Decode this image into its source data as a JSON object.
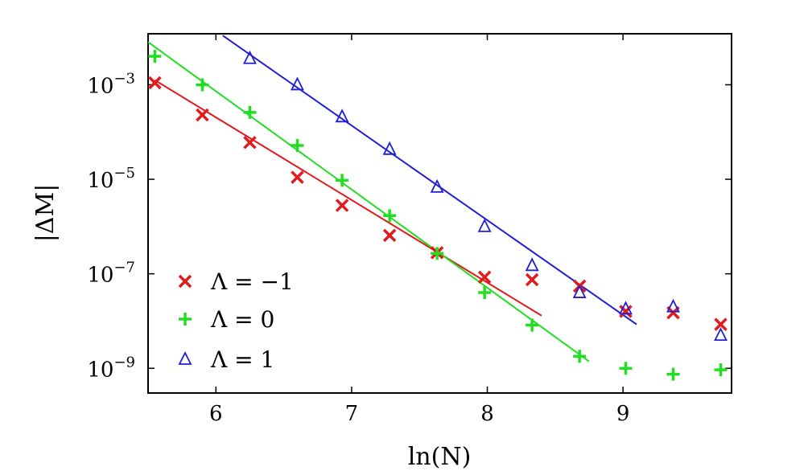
{
  "chart_data": {
    "type": "scatter",
    "xlabel": "ln(N)",
    "ylabel": "|ΔM|",
    "xlim": [
      5.5,
      9.8
    ],
    "ylim": [
      3e-10,
      0.012
    ],
    "yscale": "log",
    "xticks": [
      {
        "value": 6,
        "label": "6"
      },
      {
        "value": 7,
        "label": "7"
      },
      {
        "value": 8,
        "label": "8"
      },
      {
        "value": 9,
        "label": "9"
      }
    ],
    "yticks": [
      {
        "value": 0.001,
        "mantissa": "10",
        "exp": "−3"
      },
      {
        "value": 1e-05,
        "mantissa": "10",
        "exp": "−5"
      },
      {
        "value": 1e-07,
        "mantissa": "10",
        "exp": "−7"
      },
      {
        "value": 1e-09,
        "mantissa": "10",
        "exp": "−9"
      }
    ],
    "grid": false,
    "legend_position": "bottom-left",
    "series": [
      {
        "name": "Λ = −1",
        "color": "#e31a1c",
        "marker": "x",
        "points": [
          [
            5.55,
            0.0011
          ],
          [
            5.9,
            0.00023
          ],
          [
            6.25,
            6e-05
          ],
          [
            6.6,
            1.1e-05
          ],
          [
            6.93,
            2.8e-06
          ],
          [
            7.28,
            6.5e-07
          ],
          [
            7.63,
            2.8e-07
          ],
          [
            7.98,
            8.5e-08
          ],
          [
            8.33,
            7.5e-08
          ],
          [
            8.68,
            5.5e-08
          ],
          [
            9.02,
            1.6e-08
          ],
          [
            9.37,
            1.5e-08
          ],
          [
            9.72,
            8.5e-09
          ]
        ],
        "fit": [
          [
            5.55,
            0.00125
          ],
          [
            8.4,
            1.3e-08
          ]
        ]
      },
      {
        "name": "Λ = 0",
        "color": "#22dd22",
        "marker": "+",
        "points": [
          [
            5.55,
            0.004
          ],
          [
            5.9,
            0.001
          ],
          [
            6.25,
            0.00026
          ],
          [
            6.6,
            5.2e-05
          ],
          [
            6.93,
            9.5e-06
          ],
          [
            7.28,
            1.7e-06
          ],
          [
            7.63,
            2.7e-07
          ],
          [
            7.98,
            4e-08
          ],
          [
            8.33,
            8.2e-09
          ],
          [
            8.68,
            1.8e-09
          ],
          [
            9.02,
            1e-09
          ],
          [
            9.37,
            7.5e-10
          ],
          [
            9.72,
            9.3e-10
          ]
        ],
        "fit": [
          [
            5.5,
            0.008
          ],
          [
            8.75,
            1.4e-09
          ]
        ]
      },
      {
        "name": "Λ = 1",
        "color": "#1f1fd6",
        "marker": "triangle",
        "points": [
          [
            6.25,
            0.0036
          ],
          [
            6.6,
            0.001
          ],
          [
            6.93,
            0.00021
          ],
          [
            7.28,
            4.3e-05
          ],
          [
            7.63,
            6.8e-06
          ],
          [
            7.98,
            1e-06
          ],
          [
            8.33,
            1.5e-07
          ],
          [
            8.68,
            4e-08
          ],
          [
            9.02,
            1.8e-08
          ],
          [
            9.37,
            2e-08
          ],
          [
            9.72,
            5e-09
          ]
        ],
        "fit": [
          [
            6.05,
            0.011
          ],
          [
            9.1,
            8.5e-09
          ]
        ]
      }
    ]
  }
}
